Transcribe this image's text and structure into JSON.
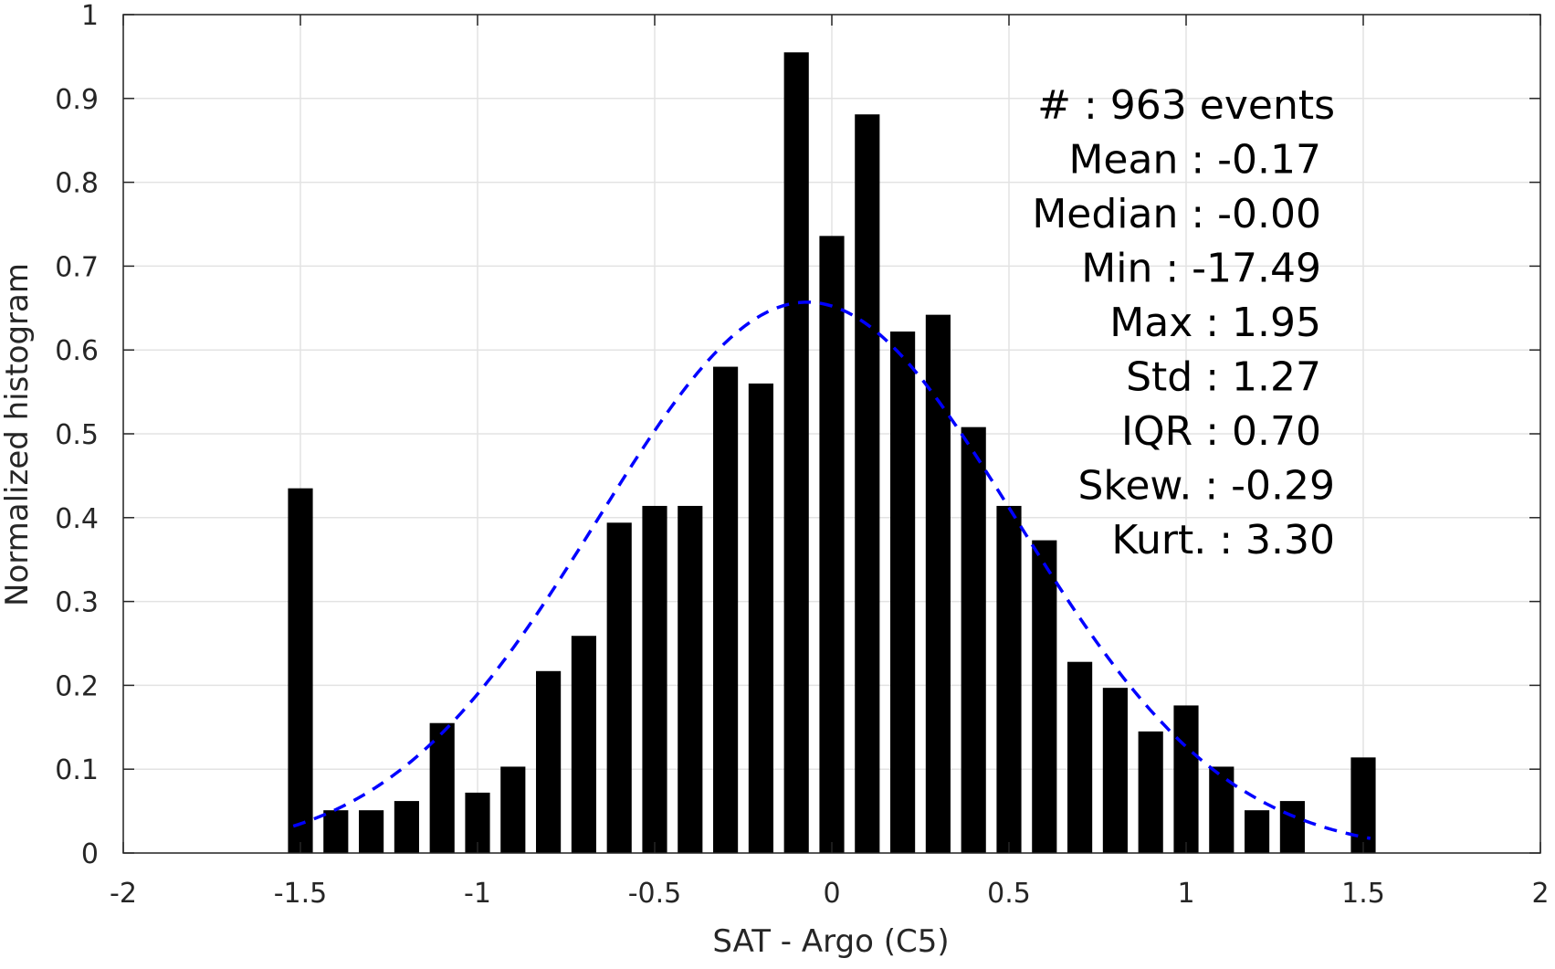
{
  "chart_data": {
    "type": "bar",
    "title": "",
    "xlabel": "SAT - Argo (C5)",
    "ylabel": "Normalized histogram",
    "xlim": [
      -2,
      2
    ],
    "ylim": [
      0,
      1
    ],
    "xticks": [
      "-2",
      "-1.5",
      "-1",
      "-0.5",
      "0",
      "0.5",
      "1",
      "1.5",
      "2"
    ],
    "yticks": [
      "0",
      "0.1",
      "0.2",
      "0.3",
      "0.4",
      "0.5",
      "0.6",
      "0.7",
      "0.8",
      "0.9",
      "1"
    ],
    "xtick_values": [
      -2,
      -1.5,
      -1,
      -0.5,
      0,
      0.5,
      1,
      1.5,
      2
    ],
    "ytick_values": [
      0,
      0.1,
      0.2,
      0.3,
      0.4,
      0.5,
      0.6,
      0.7,
      0.8,
      0.9,
      1
    ],
    "grid": true,
    "bar_color": "#000000",
    "bar_width": 0.07,
    "bins": [
      {
        "x": -1.5,
        "y": 0.435
      },
      {
        "x": -1.4,
        "y": 0.051
      },
      {
        "x": -1.3,
        "y": 0.051
      },
      {
        "x": -1.2,
        "y": 0.062
      },
      {
        "x": -1.1,
        "y": 0.155
      },
      {
        "x": -1.0,
        "y": 0.072
      },
      {
        "x": -0.9,
        "y": 0.103
      },
      {
        "x": -0.8,
        "y": 0.217
      },
      {
        "x": -0.7,
        "y": 0.259
      },
      {
        "x": -0.6,
        "y": 0.394
      },
      {
        "x": -0.5,
        "y": 0.414
      },
      {
        "x": -0.4,
        "y": 0.414
      },
      {
        "x": -0.3,
        "y": 0.58
      },
      {
        "x": -0.2,
        "y": 0.56
      },
      {
        "x": -0.1,
        "y": 0.955
      },
      {
        "x": 0.0,
        "y": 0.736
      },
      {
        "x": 0.1,
        "y": 0.881
      },
      {
        "x": 0.2,
        "y": 0.622
      },
      {
        "x": 0.3,
        "y": 0.642
      },
      {
        "x": 0.4,
        "y": 0.508
      },
      {
        "x": 0.5,
        "y": 0.414
      },
      {
        "x": 0.6,
        "y": 0.373
      },
      {
        "x": 0.7,
        "y": 0.228
      },
      {
        "x": 0.8,
        "y": 0.197
      },
      {
        "x": 0.9,
        "y": 0.145
      },
      {
        "x": 1.0,
        "y": 0.176
      },
      {
        "x": 1.1,
        "y": 0.103
      },
      {
        "x": 1.2,
        "y": 0.051
      },
      {
        "x": 1.3,
        "y": 0.062
      },
      {
        "x": 1.5,
        "y": 0.114
      }
    ],
    "fit_curve": {
      "type": "gaussian",
      "color": "#0000ff",
      "style": "dashed",
      "peak": 0.657,
      "mean": -0.07,
      "sigma": 0.59,
      "x_range": [
        -1.52,
        1.52
      ]
    },
    "stats": [
      {
        "label": "#",
        "value": ": 963 events"
      },
      {
        "label": "Mean",
        "value": ": -0.17"
      },
      {
        "label": "Median",
        "value": ": -0.00"
      },
      {
        "label": "Min",
        "value": ": -17.49"
      },
      {
        "label": "Max",
        "value": ": 1.95"
      },
      {
        "label": "Std",
        "value": ": 1.27"
      },
      {
        "label": "IQR",
        "value": ": 0.70"
      },
      {
        "label": "Skew.",
        "value": ": -0.29"
      },
      {
        "label": "Kurt.",
        "value": ": 3.30"
      }
    ]
  }
}
